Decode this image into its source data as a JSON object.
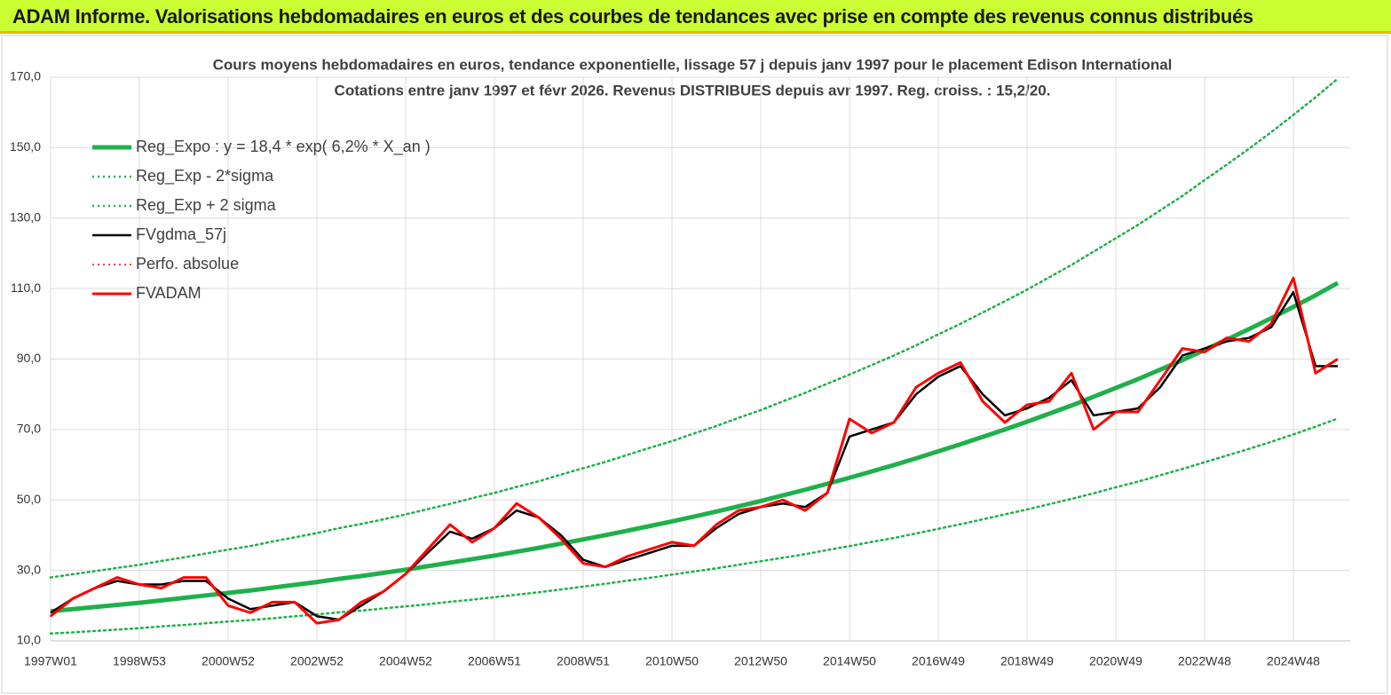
{
  "header": {
    "title": "ADAM Informe. Valorisations hebdomadaires en euros et des courbes de tendances avec prise en compte des revenus connus distribués"
  },
  "chart_data": {
    "type": "line",
    "title": "Cours moyens hebdomadaires en euros, tendance exponentielle, lissage 57 j depuis janv 1997 pour le placement Edison International",
    "subtitle": "Cotations entre janv 1997 et févr 2026. Revenus DISTRIBUES depuis avr 1997. Reg. croiss. : 15,2/20.",
    "categories": [
      "1997W01",
      null,
      null,
      null,
      "1998W53",
      null,
      null,
      null,
      "2000W52",
      null,
      null,
      null,
      "2002W52",
      null,
      null,
      null,
      "2004W52",
      null,
      null,
      null,
      "2006W51",
      null,
      null,
      null,
      "2008W51",
      null,
      null,
      null,
      "2010W50",
      null,
      null,
      null,
      "2012W50",
      null,
      null,
      null,
      "2014W50",
      null,
      null,
      null,
      "2016W49",
      null,
      null,
      null,
      "2018W49",
      null,
      null,
      null,
      "2020W49",
      null,
      null,
      null,
      "2022W48",
      null,
      null,
      null,
      "2024W48",
      null,
      null
    ],
    "ylim": [
      10,
      170
    ],
    "yticks": [
      {
        "value": 10,
        "label": "10,0"
      },
      {
        "value": 30,
        "label": "30,0"
      },
      {
        "value": 50,
        "label": "50,0"
      },
      {
        "value": 70,
        "label": "70,0"
      },
      {
        "value": 90,
        "label": "90,0"
      },
      {
        "value": 110,
        "label": "110,0"
      },
      {
        "value": 130,
        "label": "130,0"
      },
      {
        "value": 150,
        "label": "150,0"
      },
      {
        "value": 170,
        "label": "170,0"
      }
    ],
    "grid": true,
    "legend": "top-left",
    "series": [
      {
        "name": "Reg_Expo : y = 18,4 * exp( 6,2% *  X_an )",
        "color": "#1fb04b",
        "dash": "solid",
        "width": 5,
        "values": [
          18.4,
          19.0,
          19.6,
          20.2,
          20.8,
          21.5,
          22.2,
          22.9,
          23.6,
          24.3,
          25.1,
          25.9,
          26.7,
          27.6,
          28.4,
          29.3,
          30.2,
          31.2,
          32.2,
          33.2,
          34.2,
          35.3,
          36.4,
          37.6,
          38.8,
          40.0,
          41.3,
          42.6,
          43.9,
          45.3,
          46.7,
          48.2,
          49.7,
          51.3,
          52.9,
          54.6,
          56.3,
          58.1,
          59.9,
          61.8,
          63.8,
          65.8,
          67.9,
          70.0,
          72.2,
          74.5,
          76.8,
          79.3,
          81.8,
          84.3,
          87.0,
          89.7,
          92.6,
          95.5,
          98.5,
          101.6,
          104.8,
          108.1,
          111.6
        ]
      },
      {
        "name": "Reg_Exp - 2*sigma",
        "color": "#1fb04b",
        "dash": "dotted",
        "width": 2.5,
        "values": [
          12.1,
          12.4,
          12.8,
          13.2,
          13.6,
          14.1,
          14.5,
          15.0,
          15.5,
          15.9,
          16.4,
          17.0,
          17.5,
          18.1,
          18.6,
          19.2,
          19.8,
          20.4,
          21.1,
          21.7,
          22.4,
          23.1,
          23.8,
          24.6,
          25.4,
          26.2,
          27.1,
          27.9,
          28.8,
          29.7,
          30.6,
          31.6,
          32.6,
          33.6,
          34.6,
          35.8,
          36.9,
          38.1,
          39.2,
          40.5,
          41.8,
          43.1,
          44.5,
          45.9,
          47.3,
          48.8,
          50.3,
          51.9,
          53.6,
          55.2,
          57.0,
          58.8,
          60.7,
          62.6,
          64.5,
          66.5,
          68.6,
          70.8,
          73.1
        ]
      },
      {
        "name": "Reg_Exp + 2 sigma",
        "color": "#1fb04b",
        "dash": "dotted",
        "width": 2.5,
        "values": [
          28.0,
          28.9,
          29.8,
          30.7,
          31.6,
          32.7,
          33.7,
          34.8,
          35.9,
          36.9,
          38.2,
          39.4,
          40.6,
          42.0,
          43.2,
          44.5,
          45.9,
          47.4,
          48.9,
          50.5,
          52.0,
          53.7,
          55.3,
          57.2,
          59.0,
          60.8,
          62.8,
          64.8,
          66.7,
          68.9,
          71.0,
          73.3,
          75.5,
          78.0,
          80.4,
          83.0,
          85.6,
          88.3,
          91.0,
          93.9,
          97.0,
          100.0,
          103.2,
          106.4,
          109.7,
          113.2,
          116.7,
          120.5,
          124.3,
          128.1,
          132.2,
          136.3,
          140.8,
          145.2,
          149.7,
          154.4,
          159.3,
          164.3,
          169.6
        ]
      },
      {
        "name": "FVgdma_57j",
        "color": "#000000",
        "dash": "solid",
        "width": 2.5,
        "values": [
          18,
          22,
          25,
          27,
          26,
          26,
          27,
          27,
          22,
          19,
          20,
          21,
          17,
          16,
          20,
          24,
          29,
          35,
          41,
          39,
          42,
          47,
          45,
          40,
          33,
          31,
          33,
          35,
          37,
          37,
          42,
          46,
          48,
          49,
          48,
          52,
          68,
          70,
          72,
          80,
          85,
          88,
          80,
          74,
          76,
          79,
          84,
          74,
          75,
          76,
          82,
          91,
          93,
          95,
          96,
          99,
          109,
          88,
          88
        ]
      },
      {
        "name": "Perfo. absolue",
        "color": "#ff0000",
        "dash": "dotted",
        "width": 1.5,
        "values": [
          17,
          22,
          25,
          28,
          26,
          25,
          28,
          28,
          20,
          18,
          21,
          21,
          15,
          16,
          21,
          24,
          29,
          36,
          43,
          38,
          42,
          49,
          45,
          39,
          32,
          31,
          34,
          36,
          38,
          37,
          43,
          47,
          48,
          50,
          47,
          52,
          73,
          69,
          72,
          82,
          86,
          89,
          78,
          72,
          77,
          78,
          86,
          70,
          75,
          75,
          84,
          93,
          92,
          96,
          95,
          100,
          113,
          86,
          90
        ]
      },
      {
        "name": "FVADAM",
        "color": "#ff0000",
        "dash": "solid",
        "width": 3,
        "values": [
          17,
          22,
          25,
          28,
          26,
          25,
          28,
          28,
          20,
          18,
          21,
          21,
          15,
          16,
          21,
          24,
          29,
          36,
          43,
          38,
          42,
          49,
          45,
          39,
          32,
          31,
          34,
          36,
          38,
          37,
          43,
          47,
          48,
          50,
          47,
          52,
          73,
          69,
          72,
          82,
          86,
          89,
          78,
          72,
          77,
          78,
          86,
          70,
          75,
          75,
          84,
          93,
          92,
          96,
          95,
          100,
          113,
          86,
          90
        ]
      }
    ]
  }
}
